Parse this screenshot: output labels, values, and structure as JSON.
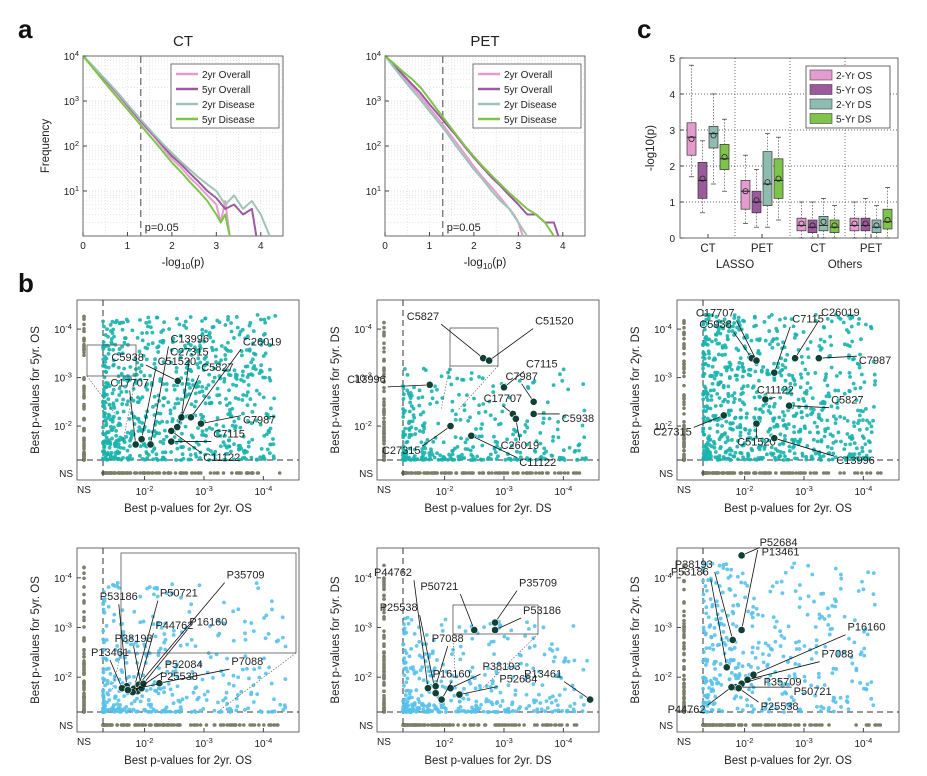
{
  "panels": {
    "a": "a",
    "b": "b",
    "c": "c"
  },
  "chart_data": [
    {
      "id": "a1",
      "type": "line",
      "title": "CT",
      "xlabel": "-log10(p)",
      "ylabel": "Frequency",
      "xlim": [
        0,
        4.5
      ],
      "ylim": [
        1,
        10000
      ],
      "y_scale": "log",
      "x_ticks": [
        0,
        1,
        2,
        3,
        4
      ],
      "y_ticks": [
        10,
        100,
        1000,
        10000
      ],
      "grid": true,
      "legend": "top-right",
      "threshold": {
        "x": 1.3,
        "label": "p=0.05"
      },
      "series": [
        {
          "name": "2yr Overall",
          "color": "#e49ccf",
          "x": [
            0,
            0.2,
            0.4,
            0.6,
            0.8,
            1,
            1.2,
            1.4,
            1.6,
            1.8,
            2,
            2.2,
            2.4,
            2.6,
            2.8,
            3,
            3.1,
            3.2,
            3.3
          ],
          "y": [
            10000,
            6000,
            3600,
            2200,
            1300,
            760,
            450,
            260,
            160,
            90,
            52,
            34,
            20,
            13,
            8,
            5,
            2,
            6,
            1
          ]
        },
        {
          "name": "5yr Overall",
          "color": "#9b5a9e",
          "x": [
            0,
            0.2,
            0.4,
            0.6,
            0.8,
            1,
            1.2,
            1.4,
            1.6,
            1.8,
            2,
            2.2,
            2.4,
            2.6,
            2.8,
            3,
            3.2,
            3.4,
            3.6,
            3.8,
            3.9
          ],
          "y": [
            10000,
            6200,
            3800,
            2300,
            1400,
            800,
            470,
            280,
            170,
            100,
            60,
            40,
            25,
            16,
            10,
            7,
            4,
            5,
            3,
            4,
            1
          ]
        },
        {
          "name": "2yr Disease",
          "color": "#9fc3b7",
          "x": [
            0,
            0.2,
            0.4,
            0.6,
            0.8,
            1,
            1.2,
            1.4,
            1.6,
            1.8,
            2,
            2.2,
            2.4,
            2.6,
            2.8,
            3,
            3.2,
            3.4,
            3.6,
            3.8,
            4,
            4.2
          ],
          "y": [
            10000,
            6300,
            3900,
            2400,
            1450,
            850,
            500,
            300,
            180,
            110,
            70,
            45,
            30,
            20,
            14,
            10,
            5,
            8,
            4,
            6,
            3,
            1
          ]
        },
        {
          "name": "5yr Disease",
          "color": "#7ec44a",
          "x": [
            0,
            0.2,
            0.4,
            0.6,
            0.8,
            1,
            1.2,
            1.4,
            1.6,
            1.8,
            2,
            2.2,
            2.4,
            2.6,
            2.8,
            3,
            3.1,
            3.2,
            3.3
          ],
          "y": [
            10000,
            5800,
            3300,
            1900,
            1100,
            650,
            380,
            220,
            130,
            75,
            43,
            27,
            16,
            10,
            6,
            3,
            2,
            3,
            1
          ]
        }
      ]
    },
    {
      "id": "a2",
      "type": "line",
      "title": "PET",
      "xlabel": "-log10(p)",
      "ylabel": "",
      "xlim": [
        0,
        4.5
      ],
      "ylim": [
        1,
        10000
      ],
      "y_scale": "log",
      "x_ticks": [
        0,
        1,
        2,
        3,
        4
      ],
      "y_ticks": [
        10,
        100,
        1000,
        10000
      ],
      "grid": true,
      "legend": "top-right",
      "threshold": {
        "x": 1.3,
        "label": "p=0.05"
      },
      "series": [
        {
          "name": "2yr Overall",
          "color": "#e49ccf",
          "x": [
            0,
            0.2,
            0.4,
            0.6,
            0.8,
            1,
            1.2,
            1.4,
            1.6,
            1.8,
            2,
            2.2,
            2.4,
            2.6,
            2.8,
            2.9,
            3,
            3.1
          ],
          "y": [
            10000,
            6000,
            3500,
            2100,
            1250,
            700,
            400,
            220,
            120,
            65,
            35,
            20,
            12,
            7,
            4,
            3,
            2,
            1
          ]
        },
        {
          "name": "5yr Overall",
          "color": "#9b5a9e",
          "x": [
            0,
            0.2,
            0.4,
            0.6,
            0.8,
            1,
            1.2,
            1.4,
            1.6,
            1.8,
            2,
            2.2,
            2.4,
            2.6,
            2.8,
            3,
            3.2,
            3.4,
            3.6,
            3.8,
            3.9
          ],
          "y": [
            10000,
            6300,
            3900,
            2400,
            1500,
            850,
            500,
            290,
            170,
            95,
            55,
            33,
            20,
            13,
            8,
            5,
            3,
            3,
            2,
            2,
            1
          ]
        },
        {
          "name": "2yr Disease",
          "color": "#9fc3b7",
          "x": [
            0,
            0.2,
            0.4,
            0.6,
            0.8,
            1,
            1.2,
            1.4,
            1.6,
            1.8,
            2,
            2.2,
            2.4,
            2.6,
            2.8,
            3,
            3.2
          ],
          "y": [
            10000,
            5600,
            3100,
            1800,
            1050,
            600,
            340,
            190,
            100,
            55,
            30,
            18,
            10,
            6,
            4,
            2,
            1
          ]
        },
        {
          "name": "5yr Disease",
          "color": "#7ec44a",
          "x": [
            0,
            0.2,
            0.4,
            0.6,
            0.8,
            1,
            1.2,
            1.4,
            1.6,
            1.8,
            2,
            2.2,
            2.4,
            2.6,
            2.8,
            3,
            3.2,
            3.4,
            3.6,
            3.8
          ],
          "y": [
            10000,
            6800,
            4500,
            3100,
            2000,
            1100,
            600,
            330,
            180,
            100,
            58,
            35,
            22,
            14,
            9,
            6,
            4,
            3,
            2,
            1
          ]
        }
      ]
    },
    {
      "id": "c",
      "type": "box",
      "ylabel": "-log10(p)",
      "ylim": [
        0,
        5
      ],
      "y_ticks": [
        0,
        1,
        2,
        3,
        4,
        5
      ],
      "legend": "top-right",
      "categories": [
        "CT",
        "PET",
        "CT",
        "PET"
      ],
      "groups": [
        "LASSO",
        "Others"
      ],
      "series": [
        {
          "name": "2-Yr OS",
          "color": "#e49ccf"
        },
        {
          "name": "5-Yr OS",
          "color": "#9b5a9e"
        },
        {
          "name": "2-Yr DS",
          "color": "#8fbcb0"
        },
        {
          "name": "5-Yr DS",
          "color": "#7ec44a"
        }
      ],
      "boxes": [
        {
          "cat": 0,
          "s": 0,
          "q1": 2.3,
          "med": 2.8,
          "q3": 3.2,
          "lo": 1.7,
          "hi": 4.8,
          "mean": 2.75
        },
        {
          "cat": 0,
          "s": 1,
          "q1": 1.1,
          "med": 1.6,
          "q3": 2.1,
          "lo": 0.7,
          "hi": 2.7,
          "mean": 1.65
        },
        {
          "cat": 0,
          "s": 2,
          "q1": 2.5,
          "med": 2.9,
          "q3": 3.1,
          "lo": 1.5,
          "hi": 4.0,
          "mean": 2.85
        },
        {
          "cat": 0,
          "s": 3,
          "q1": 1.9,
          "med": 2.2,
          "q3": 2.6,
          "lo": 1.3,
          "hi": 3.3,
          "mean": 2.25
        },
        {
          "cat": 1,
          "s": 0,
          "q1": 0.8,
          "med": 1.3,
          "q3": 1.6,
          "lo": 0.4,
          "hi": 2.3,
          "mean": 1.3
        },
        {
          "cat": 1,
          "s": 1,
          "q1": 0.7,
          "med": 1.0,
          "q3": 1.3,
          "lo": 0.3,
          "hi": 1.9,
          "mean": 1.05
        },
        {
          "cat": 1,
          "s": 2,
          "q1": 0.9,
          "med": 1.5,
          "q3": 2.4,
          "lo": 0.3,
          "hi": 2.9,
          "mean": 1.55
        },
        {
          "cat": 1,
          "s": 3,
          "q1": 1.1,
          "med": 1.6,
          "q3": 2.2,
          "lo": 0.5,
          "hi": 2.8,
          "mean": 1.65
        },
        {
          "cat": 2,
          "s": 0,
          "q1": 0.2,
          "med": 0.35,
          "q3": 0.55,
          "lo": 0.0,
          "hi": 1.0,
          "mean": 0.4
        },
        {
          "cat": 2,
          "s": 1,
          "q1": 0.15,
          "med": 0.3,
          "q3": 0.5,
          "lo": 0.0,
          "hi": 1.0,
          "mean": 0.35
        },
        {
          "cat": 2,
          "s": 2,
          "q1": 0.2,
          "med": 0.35,
          "q3": 0.6,
          "lo": 0.0,
          "hi": 1.1,
          "mean": 0.45
        },
        {
          "cat": 2,
          "s": 3,
          "q1": 0.15,
          "med": 0.3,
          "q3": 0.5,
          "lo": 0.0,
          "hi": 0.9,
          "mean": 0.35
        },
        {
          "cat": 3,
          "s": 0,
          "q1": 0.2,
          "med": 0.35,
          "q3": 0.55,
          "lo": 0.0,
          "hi": 1.0,
          "mean": 0.4
        },
        {
          "cat": 3,
          "s": 1,
          "q1": 0.2,
          "med": 0.35,
          "q3": 0.55,
          "lo": 0.0,
          "hi": 1.1,
          "mean": 0.4
        },
        {
          "cat": 3,
          "s": 2,
          "q1": 0.15,
          "med": 0.3,
          "q3": 0.5,
          "lo": 0.0,
          "hi": 0.9,
          "mean": 0.35
        },
        {
          "cat": 3,
          "s": 3,
          "q1": 0.25,
          "med": 0.45,
          "q3": 0.8,
          "lo": 0.0,
          "hi": 1.4,
          "mean": 0.5
        }
      ]
    },
    {
      "id": "b1",
      "type": "scatter",
      "color": "#1ab2ad",
      "xlabel": "Best p-values for 2yr. OS",
      "ylabel": "Best p-values for 5yr. OS",
      "x_ticks": [
        "NS",
        "10-2",
        "10-3",
        "10-4"
      ],
      "y_ticks": [
        "NS",
        "10-2",
        "10-3",
        "10-4"
      ],
      "highlights": [
        {
          "label": "C5938",
          "x": 2.56,
          "y": 2.93
        },
        {
          "label": "C27315",
          "x": 2.62,
          "y": 2.18
        },
        {
          "label": "C17707",
          "x": 1.85,
          "y": 1.62
        },
        {
          "label": "C51520",
          "x": 1.95,
          "y": 1.73
        },
        {
          "label": "C13996",
          "x": 2.1,
          "y": 1.62
        },
        {
          "label": "C5827",
          "x": 2.55,
          "y": 1.98
        },
        {
          "label": "C26019",
          "x": 2.78,
          "y": 2.18
        },
        {
          "label": "C7987",
          "x": 2.95,
          "y": 2.05
        },
        {
          "label": "C7115",
          "x": 2.45,
          "y": 1.68
        },
        {
          "label": "C11122",
          "x": 2.45,
          "y": 1.9
        }
      ]
    },
    {
      "id": "b2",
      "type": "scatter",
      "color": "#1ab2ad",
      "xlabel": "Best p-values for 2yr. DS",
      "ylabel": "Best p-values for 5yr. DS",
      "x_ticks": [
        "NS",
        "10-2",
        "10-3",
        "10-4"
      ],
      "y_ticks": [
        "NS",
        "10-2",
        "10-3",
        "10-4"
      ],
      "highlights": [
        {
          "label": "C5827",
          "x": 2.65,
          "y": 3.4
        },
        {
          "label": "C51520",
          "x": 2.75,
          "y": 3.35
        },
        {
          "label": "C13996",
          "x": 1.75,
          "y": 2.85
        },
        {
          "label": "C7115",
          "x": 3.0,
          "y": 2.8
        },
        {
          "label": "C7987",
          "x": 3.5,
          "y": 2.5
        },
        {
          "label": "C17707",
          "x": 3.15,
          "y": 2.25
        },
        {
          "label": "C5938",
          "x": 3.5,
          "y": 2.25
        },
        {
          "label": "C26019",
          "x": 3.2,
          "y": 2.15
        },
        {
          "label": "C27315",
          "x": 2.1,
          "y": 2.0
        },
        {
          "label": "C11122",
          "x": 2.45,
          "y": 1.8
        }
      ]
    },
    {
      "id": "b3",
      "type": "scatter",
      "color": "#1ab2ad",
      "xlabel": "Best p-values for 2yr. OS",
      "ylabel": "Best p-values for 2yr. DS",
      "x_ticks": [
        "NS",
        "10-2",
        "10-3",
        "10-4"
      ],
      "y_ticks": [
        "NS",
        "10-2",
        "10-3",
        "10-4"
      ],
      "highlights": [
        {
          "label": "C5938",
          "x": 2.12,
          "y": 3.4
        },
        {
          "label": "C17707",
          "x": 2.2,
          "y": 3.35
        },
        {
          "label": "C7115",
          "x": 2.5,
          "y": 3.1
        },
        {
          "label": "C26019",
          "x": 2.85,
          "y": 3.4
        },
        {
          "label": "C7987",
          "x": 3.25,
          "y": 3.4
        },
        {
          "label": "C11122",
          "x": 2.35,
          "y": 2.55
        },
        {
          "label": "C5827",
          "x": 2.75,
          "y": 2.42
        },
        {
          "label": "C27315",
          "x": 1.65,
          "y": 2.22
        },
        {
          "label": "C51520",
          "x": 2.2,
          "y": 2.05
        },
        {
          "label": "C13996",
          "x": 2.5,
          "y": 1.75
        }
      ]
    },
    {
      "id": "b4",
      "type": "scatter",
      "color": "#56c1ea",
      "xlabel": "Best p-values for 2yr. OS",
      "ylabel": "Best p-values for 5yr. OS",
      "x_ticks": [
        "NS",
        "10-2",
        "10-3",
        "10-4"
      ],
      "y_ticks": [
        "NS",
        "10-2",
        "10-3",
        "10-4"
      ],
      "highlights": [
        {
          "label": "P53186",
          "x": 1.7,
          "y": 1.82
        },
        {
          "label": "P50721",
          "x": 1.82,
          "y": 1.77
        },
        {
          "label": "P35709",
          "x": 1.9,
          "y": 1.85
        },
        {
          "label": "P44762",
          "x": 1.88,
          "y": 1.72
        },
        {
          "label": "P38193",
          "x": 1.95,
          "y": 1.78
        },
        {
          "label": "P16160",
          "x": 1.98,
          "y": 1.87
        },
        {
          "label": "P13461",
          "x": 1.62,
          "y": 1.78
        },
        {
          "label": "P7088",
          "x": 2.25,
          "y": 1.88
        },
        {
          "label": "P52084",
          "x": 1.8,
          "y": 1.7
        },
        {
          "label": "P25538",
          "x": 1.72,
          "y": 1.74
        }
      ]
    },
    {
      "id": "b5",
      "type": "scatter",
      "color": "#56c1ea",
      "xlabel": "Best p-values for 2yr. DS",
      "ylabel": "Best p-values for 5yr. DS",
      "x_ticks": [
        "NS",
        "10-2",
        "10-3",
        "10-4"
      ],
      "y_ticks": [
        "NS",
        "10-2",
        "10-3",
        "10-4"
      ],
      "highlights": [
        {
          "label": "P44762",
          "x": 1.72,
          "y": 1.78
        },
        {
          "label": "P25538",
          "x": 1.85,
          "y": 1.68
        },
        {
          "label": "P50721",
          "x": 2.5,
          "y": 2.95
        },
        {
          "label": "P35709",
          "x": 2.85,
          "y": 3.1
        },
        {
          "label": "P53186",
          "x": 2.85,
          "y": 2.95
        },
        {
          "label": "P7088",
          "x": 1.85,
          "y": 1.82
        },
        {
          "label": "P38193",
          "x": 2.1,
          "y": 1.78
        },
        {
          "label": "P52684",
          "x": 2.25,
          "y": 1.65
        },
        {
          "label": "P16160",
          "x": 1.95,
          "y": 1.55
        },
        {
          "label": "P13461",
          "x": 4.45,
          "y": 1.55
        }
      ]
    },
    {
      "id": "b6",
      "type": "scatter",
      "color": "#56c1ea",
      "xlabel": "Best p-values for 2yr. OS",
      "ylabel": "Best p-values for 2yr. DS",
      "x_ticks": [
        "NS",
        "10-2",
        "10-3",
        "10-4"
      ],
      "y_ticks": [
        "NS",
        "10-2",
        "10-3",
        "10-4"
      ],
      "highlights": [
        {
          "label": "P13461",
          "x": 1.95,
          "y": 4.45
        },
        {
          "label": "P53186",
          "x": 1.7,
          "y": 2.2
        },
        {
          "label": "P38193",
          "x": 1.8,
          "y": 2.75
        },
        {
          "label": "P52684",
          "x": 1.95,
          "y": 2.95
        },
        {
          "label": "P16160",
          "x": 2.15,
          "y": 2.05
        },
        {
          "label": "P7088",
          "x": 2.05,
          "y": 1.95
        },
        {
          "label": "P35709",
          "x": 1.95,
          "y": 1.87
        },
        {
          "label": "P50721",
          "x": 1.85,
          "y": 1.8
        },
        {
          "label": "P44762",
          "x": 1.78,
          "y": 1.8
        },
        {
          "label": "P25538",
          "x": 1.9,
          "y": 1.78
        }
      ]
    }
  ]
}
